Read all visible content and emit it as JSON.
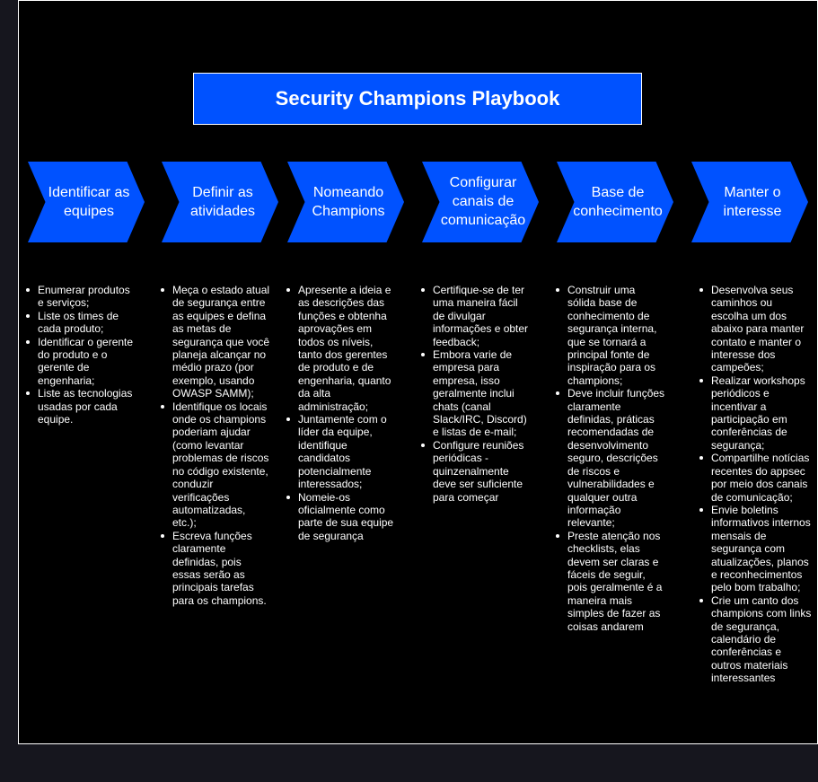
{
  "title": "Security Champions Playbook",
  "colors": {
    "background": "#000000",
    "accent": "#0052ff",
    "text": "#ffffff"
  },
  "stages": [
    {
      "label": "Identificar as equipes",
      "items": [
        "Enumerar produtos e serviços;",
        "Liste os times de cada produto;",
        "Identificar o gerente do produto e o gerente de engenharia;",
        "Liste as tecnologias usadas por cada equipe."
      ]
    },
    {
      "label": "Definir as atividades",
      "items": [
        "Meça o estado atual de segurança entre as equipes e defina as metas de segurança que você planeja alcançar no médio prazo (por exemplo, usando OWASP SAMM);",
        "Identifique os locais onde os champions poderiam ajudar (como levantar problemas de riscos no código existente, conduzir verificações automatizadas, etc.);",
        "Escreva funções claramente definidas, pois essas serão as principais tarefas para os champions."
      ]
    },
    {
      "label": "Nomeando Champions",
      "items": [
        "Apresente a ideia e as descrições das funções e obtenha aprovações em todos os níveis, tanto dos gerentes de produto e de engenharia, quanto da alta administração;",
        "Juntamente com o líder da equipe, identifique candidatos potencialmente interessados;",
        "Nomeie-os oficialmente como parte de sua equipe de segurança"
      ]
    },
    {
      "label": "Configurar canais de comunicação",
      "items": [
        "Certifique-se de ter uma maneira fácil de divulgar informações e obter feedback;",
        "Embora varie de empresa para empresa, isso geralmente inclui chats (canal Slack/IRC, Discord) e listas de e-mail;",
        "Configure reuniões periódicas - quinzenalmente deve ser suficiente para começar"
      ]
    },
    {
      "label": "Base de conhecimento",
      "items": [
        "Construir uma sólida base de conhecimento de segurança interna, que se tornará a principal fonte de inspiração para os champions;",
        "Deve incluir funções claramente definidas, práticas recomendadas de desenvolvimento seguro, descrições de riscos e vulnerabilidades e qualquer outra informação relevante;",
        "Preste atenção nos checklists, elas devem ser claras e fáceis de seguir, pois geralmente é a maneira mais simples de fazer as coisas andarem"
      ]
    },
    {
      "label": "Manter o interesse",
      "items": [
        "Desenvolva seus caminhos ou escolha um dos abaixo para manter contato e manter o interesse dos campeões;",
        "Realizar workshops periódicos e incentivar a participação em conferências de segurança;",
        "Compartilhe notícias recentes do appsec por meio dos canais de comunicação;",
        "Envie boletins informativos internos mensais de segurança com atualizações, planos e reconhecimentos pelo bom trabalho;",
        "Crie um canto dos champions com links de segurança, calendário de conferências e outros materiais interessantes"
      ]
    }
  ]
}
